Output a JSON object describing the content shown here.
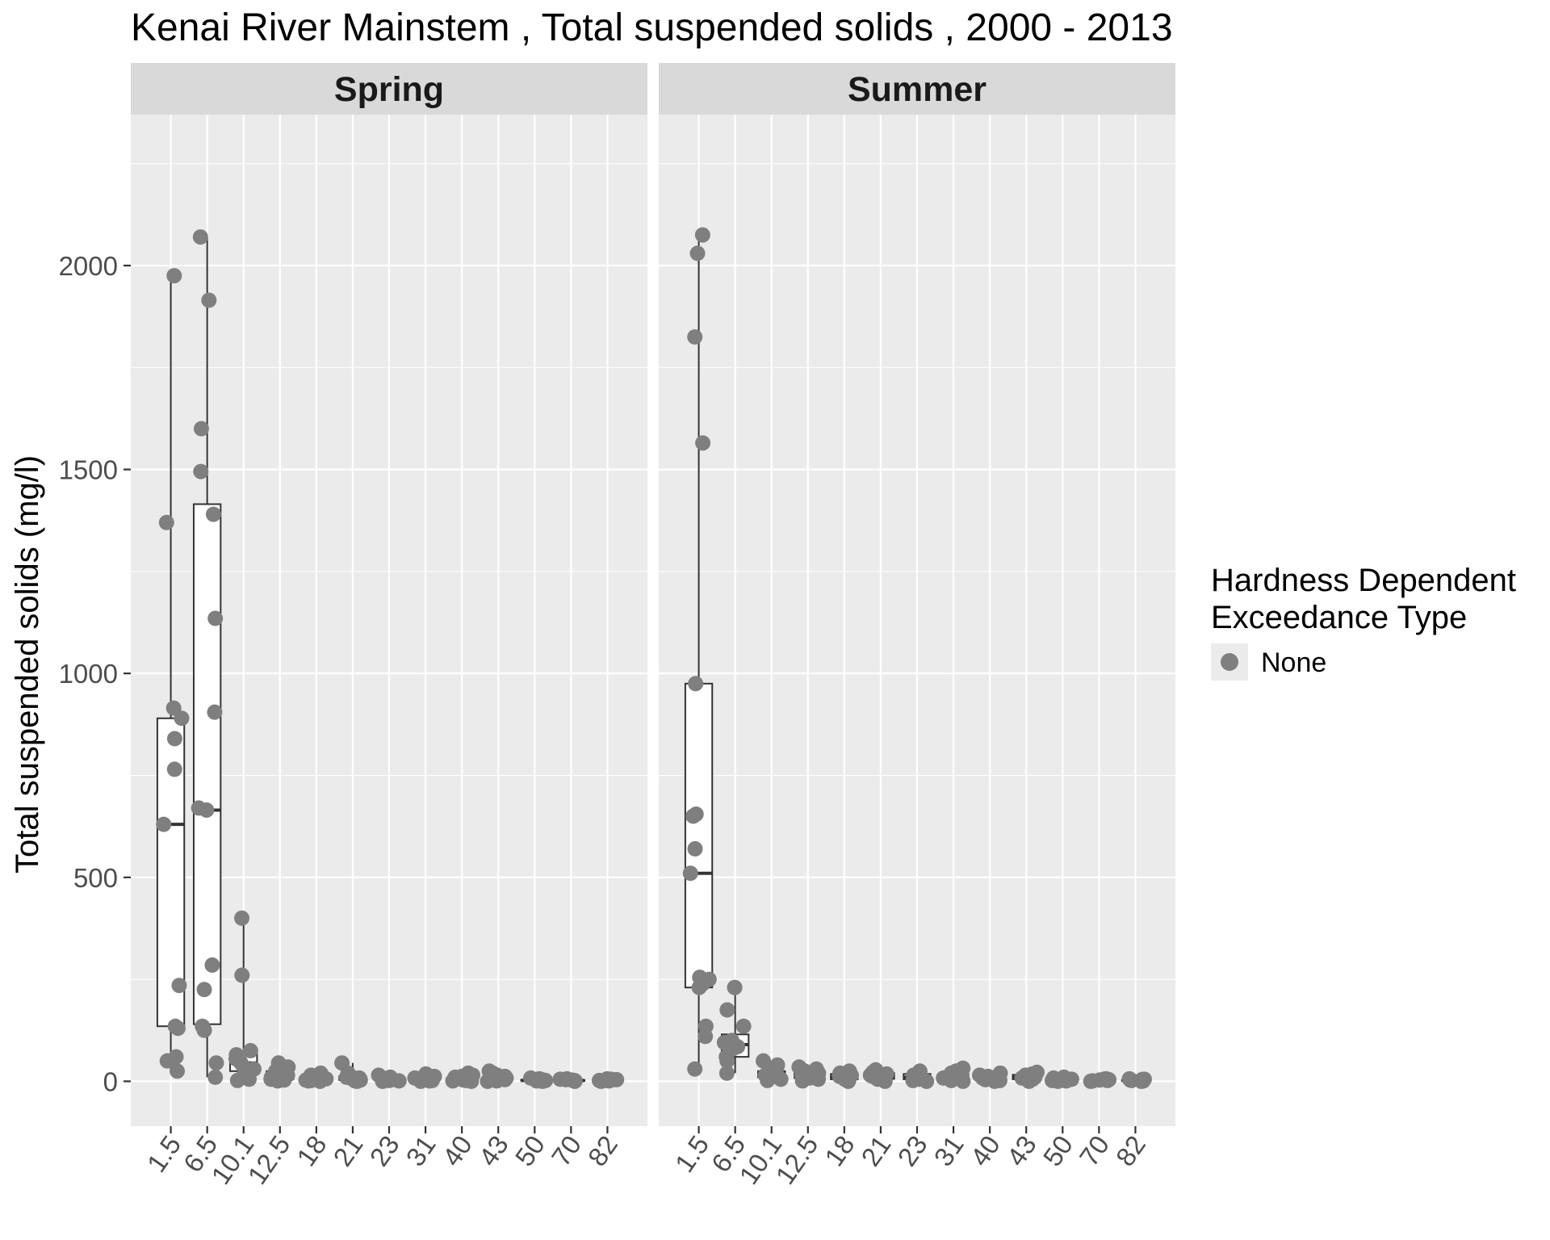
{
  "chart_data": {
    "type": "box",
    "title": "Kenai River Mainstem , Total suspended solids , 2000 - 2013",
    "ylabel": "Total suspended solids (mg/l)",
    "xlabel": "",
    "ylim": [
      -110,
      2370
    ],
    "yticks": [
      0,
      500,
      1000,
      1500,
      2000
    ],
    "categories": [
      "1.5",
      "6.5",
      "10.1",
      "12.5",
      "18",
      "21",
      "23",
      "31",
      "40",
      "43",
      "50",
      "70",
      "82"
    ],
    "grid": true,
    "legend": {
      "title_lines": [
        "Hardness Dependent",
        "Exceedance Type"
      ],
      "entries": [
        {
          "label": "None",
          "color": "#7f7f7f"
        }
      ],
      "position": "right"
    },
    "point_color": "#7f7f7f",
    "panels": [
      {
        "name": "Spring",
        "boxes": [
          {
            "category": "1.5",
            "min": 25,
            "q1": 135,
            "median": 630,
            "q3": 890,
            "max": 1975
          },
          {
            "category": "6.5",
            "min": 10,
            "q1": 140,
            "median": 665,
            "q3": 1415,
            "max": 2070
          },
          {
            "category": "10.1",
            "min": 2,
            "q1": 25,
            "median": 45,
            "q3": 70,
            "max": 400
          },
          {
            "category": "12.5",
            "min": 1,
            "q1": 5,
            "median": 12,
            "q3": 25,
            "max": 45
          },
          {
            "category": "18",
            "min": 0,
            "q1": 2,
            "median": 5,
            "q3": 10,
            "max": 20
          },
          {
            "category": "21",
            "min": 0,
            "q1": 3,
            "median": 6,
            "q3": 12,
            "max": 45
          },
          {
            "category": "23",
            "min": 0,
            "q1": 2,
            "median": 4,
            "q3": 8,
            "max": 15
          },
          {
            "category": "31",
            "min": 0,
            "q1": 2,
            "median": 4,
            "q3": 8,
            "max": 18
          },
          {
            "category": "40",
            "min": 0,
            "q1": 3,
            "median": 6,
            "q3": 10,
            "max": 20
          },
          {
            "category": "43",
            "min": 0,
            "q1": 4,
            "median": 8,
            "q3": 14,
            "max": 25
          },
          {
            "category": "50",
            "min": 0,
            "q1": 1,
            "median": 2,
            "q3": 4,
            "max": 8
          },
          {
            "category": "70",
            "min": 0,
            "q1": 1,
            "median": 2,
            "q3": 3,
            "max": 6
          },
          {
            "category": "82",
            "min": 0,
            "q1": 1,
            "median": 2,
            "q3": 3,
            "max": 6
          }
        ],
        "points": [
          {
            "category": "1.5",
            "values": [
              1975,
              1370,
              915,
              890,
              840,
              765,
              630,
              235,
              135,
              130,
              60,
              50,
              25
            ]
          },
          {
            "category": "6.5",
            "values": [
              2070,
              1915,
              1600,
              1495,
              1390,
              1135,
              905,
              670,
              665,
              285,
              225,
              135,
              125,
              45,
              10
            ]
          },
          {
            "category": "10.1",
            "values": [
              400,
              260,
              75,
              65,
              55,
              50,
              45,
              35,
              30,
              10,
              5,
              2
            ]
          },
          {
            "category": "12.5",
            "values": [
              45,
              35,
              30,
              25,
              20,
              15,
              12,
              10,
              8,
              5,
              3,
              1
            ]
          },
          {
            "category": "18",
            "values": [
              20,
              15,
              12,
              10,
              8,
              6,
              5,
              3,
              2,
              1,
              0
            ]
          },
          {
            "category": "21",
            "values": [
              45,
              20,
              15,
              12,
              10,
              8,
              6,
              4,
              3,
              1,
              0
            ]
          },
          {
            "category": "23",
            "values": [
              15,
              10,
              8,
              6,
              4,
              3,
              2,
              1,
              0
            ]
          },
          {
            "category": "31",
            "values": [
              18,
              12,
              10,
              8,
              6,
              4,
              3,
              2,
              1,
              0
            ]
          },
          {
            "category": "40",
            "values": [
              20,
              15,
              12,
              10,
              8,
              6,
              4,
              3,
              2,
              1,
              0
            ]
          },
          {
            "category": "43",
            "values": [
              25,
              20,
              15,
              12,
              10,
              8,
              6,
              4,
              2,
              1,
              0
            ]
          },
          {
            "category": "50",
            "values": [
              8,
              6,
              4,
              3,
              2,
              1,
              0
            ]
          },
          {
            "category": "70",
            "values": [
              6,
              5,
              4,
              3,
              2,
              1,
              0
            ]
          },
          {
            "category": "82",
            "values": [
              6,
              5,
              4,
              3,
              2,
              1,
              0
            ]
          }
        ]
      },
      {
        "name": "Summer",
        "boxes": [
          {
            "category": "1.5",
            "min": 30,
            "q1": 230,
            "median": 510,
            "q3": 975,
            "max": 2075
          },
          {
            "category": "6.5",
            "min": 20,
            "q1": 60,
            "median": 90,
            "q3": 115,
            "max": 230
          },
          {
            "category": "10.1",
            "min": 2,
            "q1": 10,
            "median": 20,
            "q3": 25,
            "max": 50
          },
          {
            "category": "12.5",
            "min": 1,
            "q1": 8,
            "median": 15,
            "q3": 25,
            "max": 35
          },
          {
            "category": "18",
            "min": 0,
            "q1": 5,
            "median": 10,
            "q3": 18,
            "max": 25
          },
          {
            "category": "21",
            "min": 0,
            "q1": 6,
            "median": 12,
            "q3": 20,
            "max": 28
          },
          {
            "category": "23",
            "min": 0,
            "q1": 5,
            "median": 10,
            "q3": 18,
            "max": 25
          },
          {
            "category": "31",
            "min": 0,
            "q1": 5,
            "median": 12,
            "q3": 20,
            "max": 32
          },
          {
            "category": "40",
            "min": 0,
            "q1": 4,
            "median": 8,
            "q3": 14,
            "max": 20
          },
          {
            "category": "43",
            "min": 0,
            "q1": 5,
            "median": 10,
            "q3": 16,
            "max": 22
          },
          {
            "category": "50",
            "min": 0,
            "q1": 1,
            "median": 3,
            "q3": 5,
            "max": 10
          },
          {
            "category": "70",
            "min": 0,
            "q1": 1,
            "median": 2,
            "q3": 3,
            "max": 6
          },
          {
            "category": "82",
            "min": 0,
            "q1": 1,
            "median": 2,
            "q3": 3,
            "max": 6
          }
        ],
        "points": [
          {
            "category": "1.5",
            "values": [
              2075,
              2030,
              1825,
              1565,
              975,
              655,
              650,
              570,
              510,
              255,
              250,
              240,
              230,
              135,
              110,
              30
            ]
          },
          {
            "category": "6.5",
            "values": [
              230,
              230,
              175,
              135,
              100,
              95,
              85,
              80,
              60,
              50,
              20
            ]
          },
          {
            "category": "10.1",
            "values": [
              50,
              40,
              30,
              25,
              20,
              15,
              10,
              5,
              2
            ]
          },
          {
            "category": "12.5",
            "values": [
              35,
              30,
              25,
              20,
              15,
              10,
              8,
              5,
              1
            ]
          },
          {
            "category": "18",
            "values": [
              25,
              20,
              15,
              12,
              10,
              8,
              5,
              2,
              0
            ]
          },
          {
            "category": "21",
            "values": [
              28,
              22,
              18,
              15,
              12,
              10,
              8,
              5,
              0
            ]
          },
          {
            "category": "23",
            "values": [
              25,
              20,
              15,
              12,
              10,
              5,
              2,
              0
            ]
          },
          {
            "category": "31",
            "values": [
              32,
              25,
              20,
              15,
              12,
              8,
              5,
              2,
              0
            ]
          },
          {
            "category": "40",
            "values": [
              20,
              15,
              12,
              10,
              8,
              6,
              4,
              2,
              0
            ]
          },
          {
            "category": "43",
            "values": [
              22,
              18,
              15,
              12,
              10,
              8,
              5,
              2,
              0
            ]
          },
          {
            "category": "50",
            "values": [
              10,
              8,
              5,
              3,
              2,
              1,
              0
            ]
          },
          {
            "category": "70",
            "values": [
              6,
              5,
              4,
              3,
              2,
              1,
              0
            ]
          },
          {
            "category": "82",
            "values": [
              6,
              5,
              4,
              3,
              2,
              1,
              0
            ]
          }
        ]
      }
    ]
  }
}
